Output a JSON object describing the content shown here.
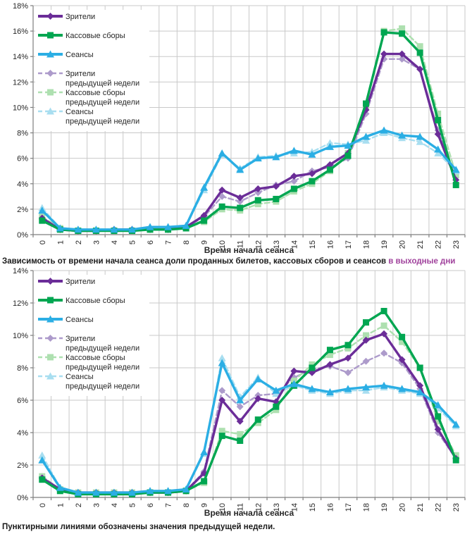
{
  "page": {
    "caption_main": "Зависимость от времени начала сеанса доли проданных билетов, кассовых сборов и сеансов ",
    "caption_highlight": "в выходные дни",
    "caption_highlight_color": "#A0429C",
    "footnote": "Пунктирными линиями обозначены значения предыдущей недели."
  },
  "colors": {
    "viewers": "#6B2D98",
    "box_office": "#00A651",
    "sessions": "#2BAEE4",
    "viewers_prev": "#AD9BCB",
    "box_office_prev": "#AEE0B0",
    "sessions_prev": "#A8DEF0",
    "grid": "#C9C9C9",
    "axis": "#7F7F7F",
    "text": "#262626"
  },
  "chart_data": [
    {
      "type": "line",
      "title": "",
      "xlabel": "Время начала сеанса",
      "ylabel": "",
      "ylim": [
        0,
        18
      ],
      "grid": true,
      "legend_position": "top-left",
      "y_tick_labels": [
        "0%",
        "2%",
        "4%",
        "6%",
        "8%",
        "10%",
        "12%",
        "14%",
        "16%",
        "18%"
      ],
      "categories": [
        "0",
        "1",
        "2",
        "3",
        "4",
        "5",
        "6",
        "7",
        "8",
        "9",
        "10",
        "11",
        "12",
        "13",
        "14",
        "15",
        "16",
        "17",
        "18",
        "19",
        "20",
        "21",
        "22",
        "23"
      ],
      "series": [
        {
          "id": "viewers",
          "name": "Зрители",
          "legend_lines": [
            "Зрители"
          ],
          "color": "#6B2D98",
          "dash": false,
          "marker": "diamond",
          "values": [
            1.3,
            0.4,
            0.3,
            0.3,
            0.4,
            0.4,
            0.4,
            0.4,
            0.6,
            1.5,
            3.5,
            2.9,
            3.6,
            3.8,
            4.6,
            4.8,
            5.5,
            6.4,
            9.8,
            14.2,
            14.2,
            13.0,
            7.9,
            4.3
          ]
        },
        {
          "id": "box-office",
          "name": "Кассовые сборы",
          "legend_lines": [
            "Кассовые сборы"
          ],
          "color": "#00A651",
          "dash": false,
          "marker": "square",
          "values": [
            1.1,
            0.4,
            0.3,
            0.3,
            0.3,
            0.3,
            0.4,
            0.4,
            0.5,
            1.1,
            2.2,
            2.1,
            2.7,
            2.8,
            3.6,
            4.2,
            5.1,
            6.2,
            10.3,
            15.9,
            15.8,
            14.3,
            9.0,
            3.9
          ]
        },
        {
          "id": "sessions",
          "name": "Сеансы",
          "legend_lines": [
            "Сеансы"
          ],
          "color": "#2BAEE4",
          "dash": false,
          "marker": "triangle",
          "values": [
            1.9,
            0.5,
            0.4,
            0.4,
            0.4,
            0.4,
            0.6,
            0.6,
            0.7,
            3.7,
            6.4,
            5.1,
            6.0,
            6.1,
            6.6,
            6.3,
            6.9,
            7.0,
            7.7,
            8.2,
            7.8,
            7.7,
            6.7,
            5.1
          ]
        },
        {
          "id": "viewers-prev-week",
          "name": "Зрители предыдущей недели",
          "legend_lines": [
            "Зрители",
            "предыдущей недели"
          ],
          "color": "#AD9BCB",
          "dash": true,
          "marker": "diamond",
          "values": [
            1.2,
            0.4,
            0.3,
            0.3,
            0.4,
            0.4,
            0.4,
            0.4,
            0.6,
            1.4,
            3.0,
            2.6,
            3.3,
            3.9,
            4.2,
            5.0,
            5.3,
            6.0,
            9.5,
            13.8,
            13.8,
            13.0,
            8.2,
            4.5
          ]
        },
        {
          "id": "box-office-prev-week",
          "name": "Кассовые сборы предыдущей недели",
          "legend_lines": [
            "Кассовые сборы",
            "предыдущей недели"
          ],
          "color": "#AEE0B0",
          "dash": true,
          "marker": "square",
          "values": [
            1.4,
            0.5,
            0.3,
            0.3,
            0.3,
            0.3,
            0.4,
            0.4,
            0.5,
            1.0,
            2.0,
            1.9,
            2.4,
            2.6,
            3.4,
            4.0,
            5.0,
            6.4,
            10.1,
            16.0,
            16.2,
            14.8,
            9.5,
            4.7
          ]
        },
        {
          "id": "sessions-prev-week",
          "name": "Сеансы предыдущей недели",
          "legend_lines": [
            "Сеансы",
            "предыдущей недели"
          ],
          "color": "#A8DEF0",
          "dash": true,
          "marker": "triangle",
          "values": [
            2.1,
            0.5,
            0.4,
            0.4,
            0.4,
            0.4,
            0.6,
            0.6,
            0.7,
            3.5,
            6.3,
            5.2,
            6.1,
            6.2,
            6.4,
            6.5,
            7.2,
            7.1,
            7.4,
            8.0,
            7.6,
            7.3,
            6.4,
            5.0
          ]
        }
      ]
    },
    {
      "type": "line",
      "title": "",
      "xlabel": "Время начала сеанса",
      "ylabel": "",
      "ylim": [
        0,
        14
      ],
      "grid": true,
      "legend_position": "top-left",
      "y_tick_labels": [
        "0%",
        "2%",
        "4%",
        "6%",
        "8%",
        "10%",
        "12%",
        "14%"
      ],
      "categories": [
        "0",
        "1",
        "2",
        "3",
        "4",
        "5",
        "6",
        "7",
        "8",
        "9",
        "10",
        "11",
        "12",
        "13",
        "14",
        "15",
        "16",
        "17",
        "18",
        "19",
        "20",
        "21",
        "22",
        "23"
      ],
      "series": [
        {
          "id": "viewers",
          "name": "Зрители",
          "legend_lines": [
            "Зрители"
          ],
          "color": "#6B2D98",
          "dash": false,
          "marker": "diamond",
          "values": [
            1.2,
            0.5,
            0.3,
            0.3,
            0.3,
            0.3,
            0.3,
            0.3,
            0.4,
            1.5,
            6.0,
            4.7,
            6.1,
            5.9,
            7.8,
            7.7,
            8.2,
            8.6,
            9.7,
            10.1,
            8.5,
            6.9,
            4.2,
            2.4
          ]
        },
        {
          "id": "box-office",
          "name": "Кассовые сборы",
          "legend_lines": [
            "Кассовые сборы"
          ],
          "color": "#00A651",
          "dash": false,
          "marker": "square",
          "values": [
            1.1,
            0.4,
            0.2,
            0.2,
            0.2,
            0.2,
            0.3,
            0.3,
            0.4,
            1.0,
            3.8,
            3.5,
            4.8,
            5.6,
            6.9,
            8.0,
            9.1,
            9.4,
            10.8,
            11.5,
            9.9,
            8.0,
            5.0,
            2.3
          ]
        },
        {
          "id": "sessions",
          "name": "Сеансы",
          "legend_lines": [
            "Сеансы"
          ],
          "color": "#2BAEE4",
          "dash": false,
          "marker": "triangle",
          "values": [
            2.3,
            0.6,
            0.3,
            0.3,
            0.3,
            0.3,
            0.4,
            0.4,
            0.5,
            2.8,
            8.3,
            6.0,
            7.3,
            6.6,
            7.0,
            6.7,
            6.5,
            6.7,
            6.8,
            6.9,
            6.7,
            6.5,
            5.7,
            4.5
          ]
        },
        {
          "id": "viewers-prev-week",
          "name": "Зрители предыдущей недели",
          "legend_lines": [
            "Зрители",
            "предыдущей недели"
          ],
          "color": "#AD9BCB",
          "dash": true,
          "marker": "diamond",
          "values": [
            1.3,
            0.5,
            0.3,
            0.3,
            0.3,
            0.3,
            0.3,
            0.3,
            0.4,
            1.6,
            6.6,
            5.6,
            6.3,
            6.4,
            7.4,
            7.9,
            8.1,
            7.7,
            8.4,
            8.9,
            8.3,
            6.7,
            4.0,
            2.4
          ]
        },
        {
          "id": "box-office-prev-week",
          "name": "Кассовые сборы предыдущей недели",
          "legend_lines": [
            "Кассовые сборы",
            "предыдущей недели"
          ],
          "color": "#AEE0B0",
          "dash": true,
          "marker": "square",
          "values": [
            1.3,
            0.5,
            0.3,
            0.3,
            0.3,
            0.3,
            0.3,
            0.3,
            0.4,
            0.9,
            4.1,
            3.9,
            4.6,
            5.4,
            7.2,
            8.2,
            8.8,
            9.2,
            10.0,
            10.6,
            9.6,
            8.0,
            4.7,
            2.6
          ]
        },
        {
          "id": "sessions-prev-week",
          "name": "Сеансы предыдущей недели",
          "legend_lines": [
            "Сеансы",
            "предыдущей недели"
          ],
          "color": "#A8DEF0",
          "dash": true,
          "marker": "triangle",
          "values": [
            2.6,
            0.6,
            0.3,
            0.3,
            0.3,
            0.3,
            0.4,
            0.4,
            0.5,
            2.7,
            8.6,
            6.2,
            7.4,
            6.4,
            6.9,
            6.6,
            6.4,
            6.6,
            6.6,
            6.8,
            6.6,
            6.4,
            5.5,
            4.4
          ]
        }
      ]
    }
  ]
}
